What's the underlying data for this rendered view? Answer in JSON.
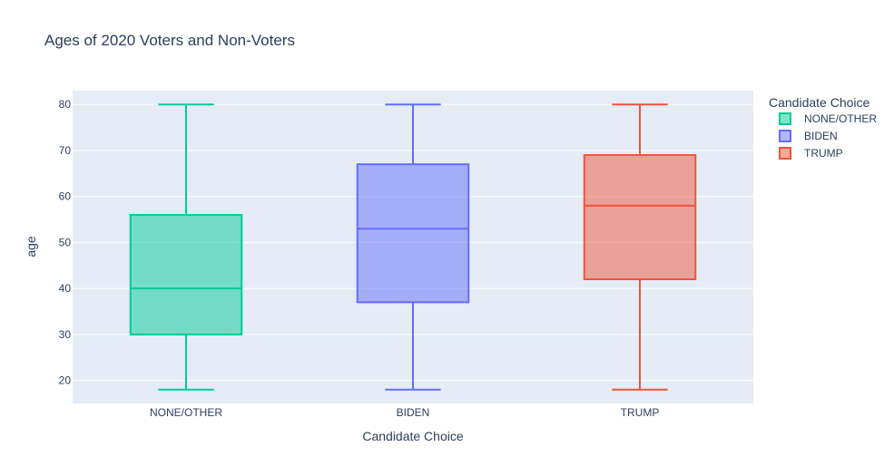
{
  "chart_data": {
    "type": "box",
    "title": "Ages of 2020 Voters and Non-Voters",
    "xlabel": "Candidate Choice",
    "ylabel": "age",
    "ylim": [
      15,
      83
    ],
    "yticks": [
      20,
      30,
      40,
      50,
      60,
      70,
      80
    ],
    "categories": [
      "NONE/OTHER",
      "BIDEN",
      "TRUMP"
    ],
    "series": [
      {
        "name": "NONE/OTHER",
        "color": "#00cc96",
        "min": 18,
        "q1": 30,
        "median": 40,
        "q3": 56,
        "max": 80
      },
      {
        "name": "BIDEN",
        "color": "#636efa",
        "min": 18,
        "q1": 37,
        "median": 53,
        "q3": 67,
        "max": 80
      },
      {
        "name": "TRUMP",
        "color": "#ef553b",
        "min": 18,
        "q1": 42,
        "median": 58,
        "q3": 69,
        "max": 80
      }
    ],
    "legend": {
      "title": "Candidate Choice",
      "position": "top-right"
    },
    "grid": true,
    "plot_bg": "#e5ecf6"
  }
}
